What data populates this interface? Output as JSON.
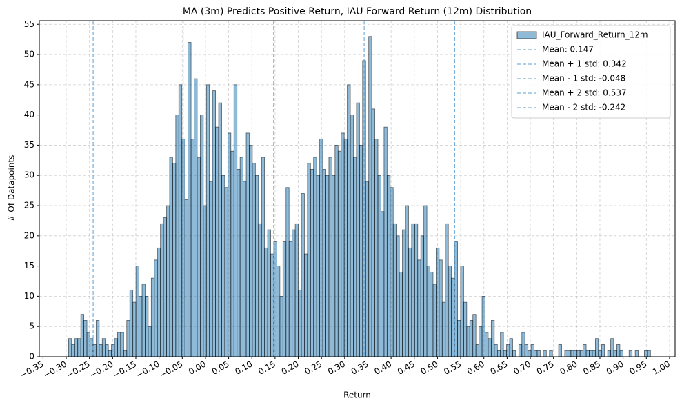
{
  "chart_data": {
    "type": "histogram",
    "title": "MA (3m) Predicts Positive Return, IAU Forward Return (12m) Distribution",
    "x_label": "Return",
    "y_label": "# Of Datapoints",
    "series": [
      {
        "name": "IAU_Forward_Return_12m",
        "color": "#1f77b4",
        "values": [
          3,
          2,
          3,
          3,
          7,
          6,
          4,
          3,
          2,
          6,
          2,
          3,
          2,
          1,
          2,
          3,
          4,
          4,
          1,
          6,
          11,
          9,
          15,
          10,
          12,
          10,
          5,
          13,
          16,
          18,
          22,
          23,
          25,
          33,
          32,
          40,
          45,
          36,
          26,
          52,
          36,
          46,
          33,
          40,
          25,
          45,
          29,
          44,
          38,
          42,
          30,
          28,
          37,
          34,
          45,
          31,
          33,
          29,
          37,
          35,
          32,
          30,
          22,
          33,
          18,
          21,
          17,
          19,
          15,
          10,
          19,
          28,
          19,
          21,
          22,
          11,
          27,
          17,
          32,
          31,
          33,
          30,
          36,
          31,
          30,
          33,
          30,
          35,
          34,
          37,
          36,
          45,
          40,
          33,
          42,
          35,
          49,
          29,
          53,
          41,
          36,
          30,
          24,
          38,
          30,
          28,
          22,
          20,
          14,
          21,
          25,
          18,
          22,
          22,
          16,
          20,
          25,
          15,
          14,
          12,
          18,
          16,
          9,
          22,
          15,
          13,
          19,
          6,
          15,
          9,
          5,
          6,
          7,
          2,
          5,
          10,
          4,
          3,
          6,
          2,
          1,
          4,
          1,
          2,
          3,
          1,
          0,
          2,
          4,
          2,
          1,
          2,
          1,
          1,
          0,
          1,
          0,
          1,
          0,
          0,
          2,
          0,
          1,
          1,
          1,
          1,
          1,
          1,
          2,
          1,
          1,
          1,
          3,
          1,
          2,
          0,
          1,
          3,
          1,
          2,
          1,
          0,
          0,
          1,
          0,
          1,
          0,
          0,
          1,
          1
        ]
      }
    ],
    "bins": [
      -0.295,
      -0.2884,
      -0.2818,
      -0.2752,
      -0.2686,
      -0.262,
      -0.2554,
      -0.2488,
      -0.2422,
      -0.2356,
      -0.229,
      -0.2224,
      -0.2158,
      -0.2092,
      -0.2026,
      -0.196,
      -0.1894,
      -0.1828,
      -0.1762,
      -0.1696,
      -0.163,
      -0.1564,
      -0.1498,
      -0.1432,
      -0.1366,
      -0.13,
      -0.1234,
      -0.1168,
      -0.1102,
      -0.1036,
      -0.097,
      -0.0904,
      -0.0838,
      -0.0772,
      -0.0706,
      -0.064,
      -0.0574,
      -0.0508,
      -0.0442,
      -0.0376,
      -0.031,
      -0.0244,
      -0.0178,
      -0.0112,
      -0.0046,
      0.002,
      0.0086,
      0.0152,
      0.0218,
      0.0284,
      0.035,
      0.0416,
      0.0482,
      0.0548,
      0.0614,
      0.068,
      0.0746,
      0.0812,
      0.0878,
      0.0944,
      0.101,
      0.1076,
      0.1142,
      0.1208,
      0.1274,
      0.134,
      0.1406,
      0.1472,
      0.1538,
      0.1604,
      0.167,
      0.1736,
      0.1802,
      0.1868,
      0.1934,
      0.2,
      0.2066,
      0.2132,
      0.2198,
      0.2264,
      0.233,
      0.2396,
      0.2462,
      0.2528,
      0.2594,
      0.266,
      0.2726,
      0.2792,
      0.2858,
      0.2924,
      0.299,
      0.3056,
      0.3122,
      0.3188,
      0.3254,
      0.332,
      0.3386,
      0.3452,
      0.3518,
      0.3584,
      0.365,
      0.3716,
      0.3782,
      0.3848,
      0.3914,
      0.398,
      0.4046,
      0.4112,
      0.4178,
      0.4244,
      0.431,
      0.4376,
      0.4442,
      0.4508,
      0.4574,
      0.464,
      0.4706,
      0.4772,
      0.4838,
      0.4904,
      0.497,
      0.5036,
      0.5102,
      0.5168,
      0.5234,
      0.53,
      0.5366,
      0.5432,
      0.5498,
      0.5564,
      0.563,
      0.5696,
      0.5762,
      0.5828,
      0.5894,
      0.596,
      0.6026,
      0.6092,
      0.6158,
      0.6224,
      0.629,
      0.6356,
      0.6422,
      0.6488,
      0.6554,
      0.662,
      0.6686,
      0.6752,
      0.6818,
      0.6884,
      0.695,
      0.7016,
      0.7082,
      0.7148,
      0.7214,
      0.728,
      0.7346,
      0.7412,
      0.7478,
      0.7544,
      0.761,
      0.7676,
      0.7742,
      0.7808,
      0.7874,
      0.794,
      0.8006,
      0.8072,
      0.8138,
      0.8204,
      0.827,
      0.8336,
      0.8402,
      0.8468,
      0.8534,
      0.86,
      0.8666,
      0.8732,
      0.8798,
      0.8864,
      0.893,
      0.8996,
      0.9062,
      0.9128,
      0.9194,
      0.926,
      0.9326,
      0.9392,
      0.9458,
      0.9524,
      0.959
    ],
    "reference_lines": [
      {
        "name": "Mean: 0.147",
        "value": 0.147,
        "color": "#5a9fd4"
      },
      {
        "name": "Mean + 1 std: 0.342",
        "value": 0.342,
        "color": "#5a9fd4"
      },
      {
        "name": "Mean - 1 std: -0.048",
        "value": -0.048,
        "color": "#5a9fd4"
      },
      {
        "name": "Mean + 2 std: 0.537",
        "value": 0.537,
        "color": "#5a9fd4"
      },
      {
        "name": "Mean - 2 std: -0.242",
        "value": -0.242,
        "color": "#5a9fd4"
      }
    ],
    "xlim": [
      -0.358,
      1.012
    ],
    "ylim": [
      0,
      55.6
    ],
    "xticks": [
      {
        "value": -0.35,
        "label": "−0.35"
      },
      {
        "value": -0.3,
        "label": "−0.30"
      },
      {
        "value": -0.25,
        "label": "−0.25"
      },
      {
        "value": -0.2,
        "label": "−0.20"
      },
      {
        "value": -0.15,
        "label": "−0.15"
      },
      {
        "value": -0.1,
        "label": "−0.10"
      },
      {
        "value": -0.05,
        "label": "−0.05"
      },
      {
        "value": 0,
        "label": "0.00"
      },
      {
        "value": 0.05,
        "label": "0.05"
      },
      {
        "value": 0.1,
        "label": "0.10"
      },
      {
        "value": 0.15,
        "label": "0.15"
      },
      {
        "value": 0.2,
        "label": "0.20"
      },
      {
        "value": 0.25,
        "label": "0.25"
      },
      {
        "value": 0.3,
        "label": "0.30"
      },
      {
        "value": 0.35,
        "label": "0.35"
      },
      {
        "value": 0.4,
        "label": "0.40"
      },
      {
        "value": 0.45,
        "label": "0.45"
      },
      {
        "value": 0.5,
        "label": "0.50"
      },
      {
        "value": 0.55,
        "label": "0.55"
      },
      {
        "value": 0.6,
        "label": "0.60"
      },
      {
        "value": 0.65,
        "label": "0.65"
      },
      {
        "value": 0.7,
        "label": "0.70"
      },
      {
        "value": 0.75,
        "label": "0.75"
      },
      {
        "value": 0.8,
        "label": "0.80"
      },
      {
        "value": 0.85,
        "label": "0.85"
      },
      {
        "value": 0.9,
        "label": "0.90"
      },
      {
        "value": 0.95,
        "label": "0.95"
      },
      {
        "value": 1,
        "label": "1.00"
      }
    ],
    "yticks": [
      0,
      5,
      10,
      15,
      20,
      25,
      30,
      35,
      40,
      45,
      50,
      55
    ],
    "grid": true,
    "legend": "upper right"
  }
}
